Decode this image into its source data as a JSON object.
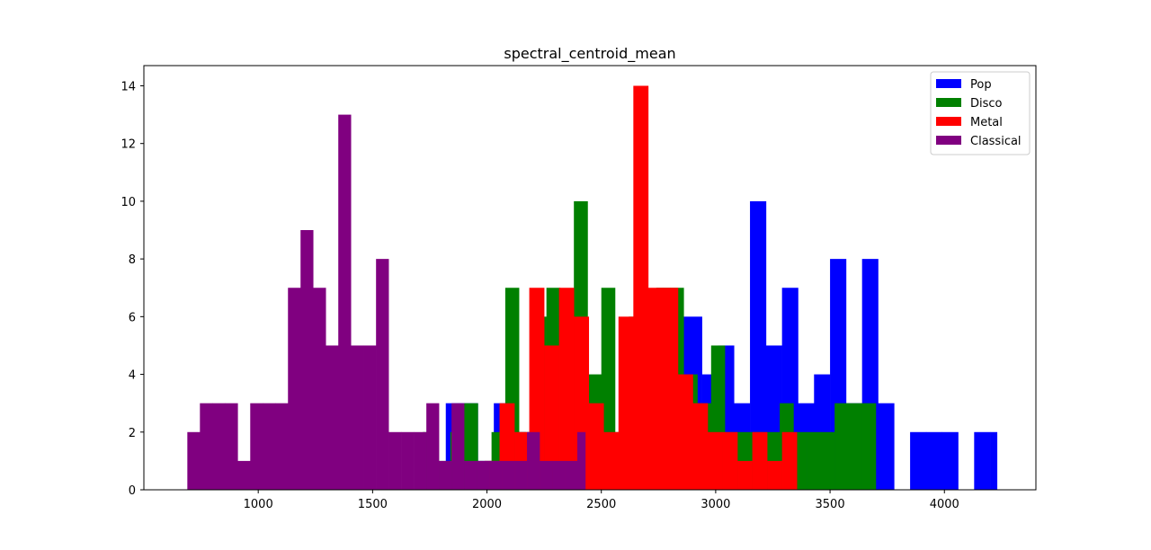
{
  "chart_data": {
    "type": "bar",
    "subtype": "histogram-overlay",
    "title": "spectral_centroid_mean",
    "xlabel": "",
    "ylabel": "",
    "xlim": [
      500,
      4400
    ],
    "ylim": [
      0,
      14.7
    ],
    "xticks": [
      1000,
      1500,
      2000,
      2500,
      3000,
      3500,
      4000
    ],
    "yticks": [
      0,
      2,
      4,
      6,
      8,
      10,
      12,
      14
    ],
    "grid": false,
    "legend_position": "top-right",
    "series": [
      {
        "name": "Pop",
        "color": "#0000ff",
        "edges": [
          1820,
          1890,
          1960,
          2030,
          2100,
          2170,
          2240,
          2310,
          2380,
          2450,
          2520,
          2590,
          2660,
          2730,
          2800,
          2870,
          2940,
          3010,
          3080,
          3150,
          3220,
          3290,
          3360,
          3430,
          3500,
          3570,
          3640,
          3710,
          3780,
          3850,
          3920,
          3990,
          4060,
          4130,
          4200,
          4230
        ],
        "counts": [
          3,
          3,
          1,
          3,
          2,
          1,
          3,
          6,
          3,
          3,
          0,
          3,
          2,
          6,
          6,
          6,
          4,
          5,
          3,
          10,
          5,
          7,
          3,
          4,
          8,
          3,
          8,
          3,
          0,
          2,
          2,
          2,
          0,
          2,
          2
        ]
      },
      {
        "name": "Disco",
        "color": "#008000",
        "edges": [
          1720,
          1780,
          1840,
          1900,
          1960,
          2020,
          2080,
          2140,
          2200,
          2260,
          2320,
          2380,
          2440,
          2500,
          2560,
          2620,
          2680,
          2740,
          2800,
          2860,
          2920,
          2980,
          3040,
          3100,
          3160,
          3220,
          3280,
          3340,
          3400,
          3460,
          3520,
          3580,
          3640,
          3700
        ],
        "counts": [
          2,
          1,
          2,
          3,
          1,
          2,
          7,
          2,
          6,
          7,
          5,
          10,
          4,
          7,
          2,
          6,
          6,
          7,
          7,
          4,
          3,
          5,
          2,
          2,
          2,
          2,
          3,
          2,
          2,
          2,
          3,
          3,
          3
        ]
      },
      {
        "name": "Metal",
        "color": "#ff0000",
        "edges": [
          1990,
          2055,
          2120,
          2185,
          2250,
          2315,
          2380,
          2445,
          2510,
          2575,
          2640,
          2705,
          2770,
          2835,
          2900,
          2965,
          3030,
          3095,
          3160,
          3225,
          3290,
          3355,
          3400
        ],
        "counts": [
          1,
          3,
          2,
          7,
          5,
          7,
          6,
          3,
          2,
          6,
          14,
          7,
          7,
          4,
          3,
          2,
          2,
          1,
          2,
          1,
          2,
          0
        ]
      },
      {
        "name": "Classical",
        "color": "#800080",
        "edges": [
          690,
          745,
          800,
          855,
          910,
          965,
          1020,
          1075,
          1130,
          1185,
          1240,
          1295,
          1350,
          1405,
          1460,
          1515,
          1570,
          1625,
          1680,
          1735,
          1790,
          1845,
          1900,
          1955,
          2010,
          2065,
          2120,
          2175,
          2230,
          2285,
          2340,
          2395,
          2430
        ],
        "counts": [
          2,
          3,
          3,
          3,
          1,
          3,
          3,
          3,
          7,
          9,
          7,
          5,
          13,
          5,
          5,
          8,
          2,
          2,
          2,
          3,
          1,
          3,
          1,
          1,
          1,
          1,
          1,
          2,
          1,
          1,
          1,
          2
        ]
      }
    ]
  }
}
